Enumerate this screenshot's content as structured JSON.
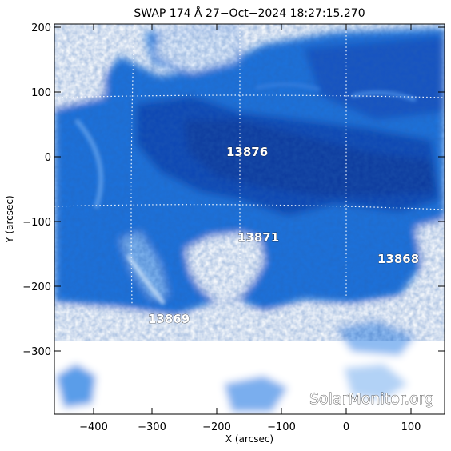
{
  "title": "SWAP 174 Å 27−Oct−2024 18:27:15.270",
  "xlabel": "X (arcsec)",
  "ylabel": "Y (arcsec)",
  "x_ticks": [
    "−400",
    "−300",
    "−200",
    "−100",
    "0",
    "100"
  ],
  "y_ticks": [
    "200",
    "100",
    "0",
    "−100",
    "−200",
    "−300"
  ],
  "regions": [
    {
      "id": "13876",
      "label": "13876"
    },
    {
      "id": "13871",
      "label": "13871"
    },
    {
      "id": "13868",
      "label": "13868"
    },
    {
      "id": "13869",
      "label": "13869"
    }
  ],
  "watermark": "SolarMonitor.org",
  "colors": {
    "deep": "#0a3a9a",
    "mid": "#1b6fd8",
    "light": "#6aa8ee",
    "bright": "#ffffff"
  }
}
